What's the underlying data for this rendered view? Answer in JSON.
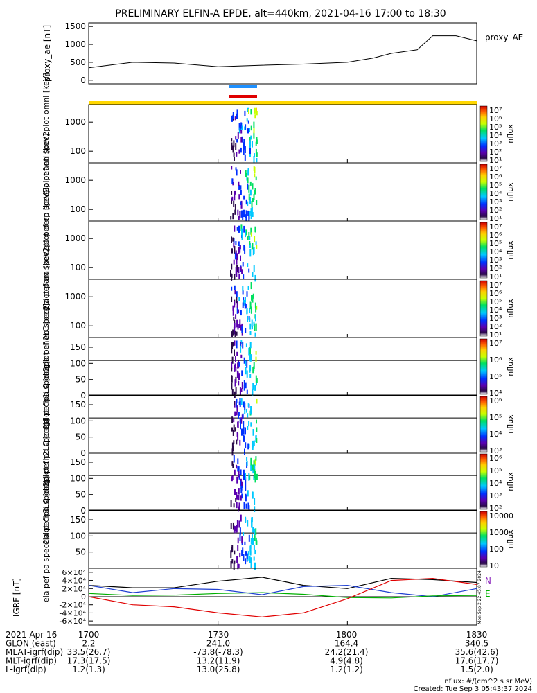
{
  "title": "PRELIMINARY ELFIN-A EPDE, alt=440km, 2021-04-16 17:00 to 18:30",
  "indicator_colors": {
    "blue_bar": "#1e90ff",
    "red_bar": "#e00000",
    "gold_bar": "#ffd700"
  },
  "chart_data": [
    {
      "type": "line",
      "panel": "proxy_ae",
      "ylabel": "proxy_ae [nT]",
      "legend": "proxy_AE",
      "ylim": [
        -100,
        1600
      ],
      "yticks": [
        "0",
        "500",
        "1000",
        "1500"
      ],
      "x": [
        17.0,
        17.17,
        17.33,
        17.5,
        17.67,
        17.83,
        18.0,
        18.1,
        18.17,
        18.27,
        18.33,
        18.42,
        18.5
      ],
      "values": [
        350,
        500,
        480,
        380,
        420,
        450,
        500,
        620,
        750,
        850,
        1240,
        1240,
        1100
      ]
    },
    {
      "type": "heatmap",
      "panel": "elf_pef_en_spec2plot_omni",
      "ylabel": "ela pef en spec2plot omni [keV]",
      "yticks": [
        "100",
        "1000"
      ],
      "colorbar_label": "nflux",
      "colorbar_ticks": [
        "10⁷",
        "10⁶",
        "10⁵",
        "10⁴",
        "10³",
        "10²",
        "10¹"
      ]
    },
    {
      "type": "heatmap",
      "panel": "elf_pef_en_spec2plot_anti",
      "ylabel": "ela pef en spec2plot anti [keV]",
      "yticks": [
        "100",
        "1000"
      ],
      "colorbar_label": "nflux",
      "colorbar_ticks": [
        "10⁷",
        "10⁶",
        "10⁵",
        "10⁴",
        "10³",
        "10²",
        "10¹"
      ]
    },
    {
      "type": "heatmap",
      "panel": "elf_pef_en_spec2plot_perp",
      "ylabel": "ela pef en spec2plot perp [keV]",
      "yticks": [
        "100",
        "1000"
      ],
      "colorbar_label": "nflux",
      "colorbar_ticks": [
        "10⁷",
        "10⁶",
        "10⁵",
        "10⁴",
        "10³",
        "10²",
        "10¹"
      ]
    },
    {
      "type": "heatmap",
      "panel": "elf_pef_en_spec2plot_para",
      "ylabel": "ela pef en spec2plot para [keV]",
      "yticks": [
        "100",
        "1000"
      ],
      "colorbar_label": "nflux",
      "colorbar_ticks": [
        "10⁷",
        "10⁶",
        "10⁵",
        "10⁴",
        "10³",
        "10²",
        "10¹"
      ]
    },
    {
      "type": "heatmap",
      "panel": "elf_pef_pa_spec2plot_ch0LC",
      "ylabel": "ela pef pa spec2plot ch0LC [deg]",
      "yticks": [
        "0",
        "50",
        "100",
        "150"
      ],
      "colorbar_label": "nflux",
      "colorbar_ticks": [
        "10⁷",
        "10⁶",
        "10⁵",
        "10⁴"
      ]
    },
    {
      "type": "heatmap",
      "panel": "elf_pef_pa_spec2plot_ch1LC",
      "ylabel": "ela pef pa spec2plot ch1LC [deg]",
      "yticks": [
        "0",
        "50",
        "100",
        "150"
      ],
      "colorbar_label": "nflux",
      "colorbar_ticks": [
        "10⁶",
        "10⁵",
        "10⁴",
        "10³"
      ]
    },
    {
      "type": "heatmap",
      "panel": "elf_pef_pa_spec2plot_ch2LC",
      "ylabel": "ela pef pa spec2plot ch2LC [deg]",
      "yticks": [
        "0",
        "50",
        "100",
        "150"
      ],
      "colorbar_label": "nflux",
      "colorbar_ticks": [
        "10⁶",
        "10⁵",
        "10⁴",
        "10³",
        "10²"
      ]
    },
    {
      "type": "heatmap",
      "panel": "elf_pef_pa_spec2plot_ch3LC",
      "ylabel": "ela pef pa spec2plot ch3LC [deg]",
      "yticks": [
        "50",
        "100",
        "150"
      ],
      "colorbar_label": "nflux",
      "colorbar_ticks": [
        "10000",
        "1000",
        "100",
        "10"
      ]
    },
    {
      "type": "line",
      "panel": "IGRF",
      "ylabel": "IGRF [nT]",
      "yticks": [
        "-6×10⁴",
        "-4×10⁴",
        "-2×10⁴",
        "0",
        "2×10⁴",
        "4×10⁴",
        "6×10⁴"
      ],
      "ylim": [
        -70000,
        70000
      ],
      "annotation": "Mon Sep  2 22:45:07 2024",
      "series": [
        {
          "name": "N",
          "color": "#000000",
          "x": [
            17.0,
            17.17,
            17.33,
            17.5,
            17.67,
            17.83,
            18.0,
            18.17,
            18.33,
            18.5
          ],
          "values": [
            28000,
            22000,
            22000,
            38000,
            48000,
            28000,
            20000,
            45000,
            42000,
            35000
          ]
        },
        {
          "name": "",
          "color": "#1f3fd0",
          "x": [
            17.0,
            17.17,
            17.33,
            17.5,
            17.67,
            17.83,
            18.0,
            18.17,
            18.33,
            18.5
          ],
          "values": [
            28000,
            10000,
            20000,
            18000,
            5000,
            25000,
            28000,
            10000,
            0,
            20000
          ]
        },
        {
          "name": "E",
          "color": "#00b000",
          "x": [
            17.0,
            17.17,
            17.33,
            17.5,
            17.67,
            17.83,
            18.0,
            18.17,
            18.33,
            18.5
          ],
          "values": [
            8000,
            3000,
            4000,
            8000,
            10000,
            6000,
            -2000,
            -3000,
            2000,
            3000
          ]
        },
        {
          "name": "",
          "color": "#e00000",
          "x": [
            17.0,
            17.17,
            17.33,
            17.5,
            17.67,
            17.83,
            18.0,
            18.17,
            18.33,
            18.5
          ],
          "values": [
            0,
            -20000,
            -25000,
            -40000,
            -50000,
            -40000,
            -5000,
            40000,
            45000,
            30000
          ]
        }
      ]
    }
  ],
  "xticks": [
    "1700",
    "1730",
    "1800",
    "1830"
  ],
  "footer": {
    "rows": [
      {
        "label": "2021 Apr 16",
        "values": [
          "1700",
          "1730",
          "1800",
          "1830"
        ]
      },
      {
        "label": "GLON (east)",
        "values": [
          "2.2",
          "241.0",
          "164.4",
          "340.5"
        ]
      },
      {
        "label": "MLAT-igrf(dip)",
        "values": [
          "33.5(26.7)",
          "-73.8(-78.3)",
          "24.2(21.4)",
          "35.6(42.6)"
        ]
      },
      {
        "label": "MLT-igrf(dip)",
        "values": [
          "17.3(17.5)",
          "13.2(11.9)",
          "4.9(4.8)",
          "17.6(17.7)"
        ]
      },
      {
        "label": "L-igrf(dip)",
        "values": [
          "1.2(1.3)",
          "13.0(25.8)",
          "1.2(1.2)",
          "1.5(2.0)"
        ]
      }
    ],
    "units_note": "nflux: #/(cm^2 s sr MeV)",
    "created": "Created: Tue Sep  3 05:43:37 2024"
  }
}
